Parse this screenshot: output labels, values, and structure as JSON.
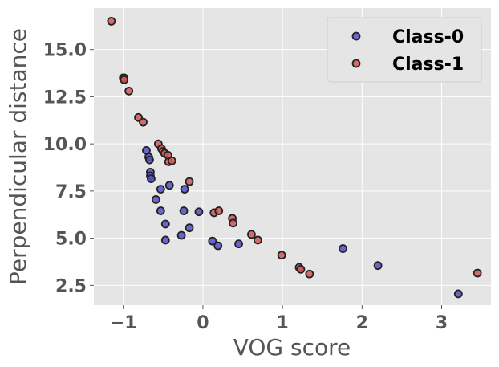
{
  "chart_data": {
    "type": "scatter",
    "xlabel": "VOG score",
    "ylabel": "Perpendicular distance",
    "xlim": [
      -1.37,
      3.62
    ],
    "ylim": [
      1.45,
      17.2
    ],
    "xticks": [
      -1,
      0,
      1,
      2,
      3
    ],
    "xtick_labels": [
      "−1",
      "0",
      "1",
      "2",
      "3"
    ],
    "yticks": [
      2.5,
      5.0,
      7.5,
      10.0,
      12.5,
      15.0
    ],
    "ytick_labels": [
      "2.5",
      "5.0",
      "7.5",
      "10.0",
      "12.5",
      "15.0"
    ],
    "grid": true,
    "legend_position": "top-right",
    "colors": {
      "plot_background": "#e5e5e5",
      "grid": "#ffffff",
      "class0_fill": "#5050c8",
      "class1_fill": "#d05858",
      "marker_edge": "#222222"
    },
    "series": [
      {
        "name": "Class-0",
        "color": "#5050c8",
        "points": [
          [
            -1.0,
            13.5
          ],
          [
            -0.71,
            9.65
          ],
          [
            -0.68,
            9.3
          ],
          [
            -0.67,
            9.15
          ],
          [
            -0.66,
            8.5
          ],
          [
            -0.66,
            8.3
          ],
          [
            -0.65,
            8.15
          ],
          [
            -0.59,
            7.05
          ],
          [
            -0.53,
            7.6
          ],
          [
            -0.42,
            7.8
          ],
          [
            -0.23,
            7.6
          ],
          [
            -0.05,
            6.4
          ],
          [
            -0.53,
            6.45
          ],
          [
            -0.24,
            6.45
          ],
          [
            -0.47,
            5.75
          ],
          [
            -0.17,
            5.55
          ],
          [
            -0.27,
            5.15
          ],
          [
            -0.47,
            4.9
          ],
          [
            0.12,
            4.85
          ],
          [
            0.19,
            4.6
          ],
          [
            0.45,
            4.7
          ],
          [
            1.76,
            4.45
          ],
          [
            2.2,
            3.55
          ],
          [
            3.21,
            2.05
          ]
        ]
      },
      {
        "name": "Class-1",
        "color": "#d05858",
        "points": [
          [
            -1.15,
            16.5
          ],
          [
            -0.99,
            13.5
          ],
          [
            -0.99,
            13.4
          ],
          [
            -0.93,
            12.8
          ],
          [
            -0.81,
            11.4
          ],
          [
            -0.75,
            11.15
          ],
          [
            -0.56,
            10.0
          ],
          [
            -0.52,
            9.75
          ],
          [
            -0.5,
            9.6
          ],
          [
            -0.48,
            9.5
          ],
          [
            -0.44,
            9.4
          ],
          [
            -0.43,
            9.05
          ],
          [
            -0.39,
            9.1
          ],
          [
            -0.17,
            8.0
          ],
          [
            0.14,
            6.35
          ],
          [
            0.2,
            6.45
          ],
          [
            0.37,
            6.05
          ],
          [
            0.38,
            5.8
          ],
          [
            0.61,
            5.2
          ],
          [
            0.69,
            4.9
          ],
          [
            0.99,
            4.1
          ],
          [
            1.21,
            3.45
          ],
          [
            1.23,
            3.35
          ],
          [
            1.34,
            3.1
          ],
          [
            3.45,
            3.15
          ]
        ]
      }
    ]
  }
}
